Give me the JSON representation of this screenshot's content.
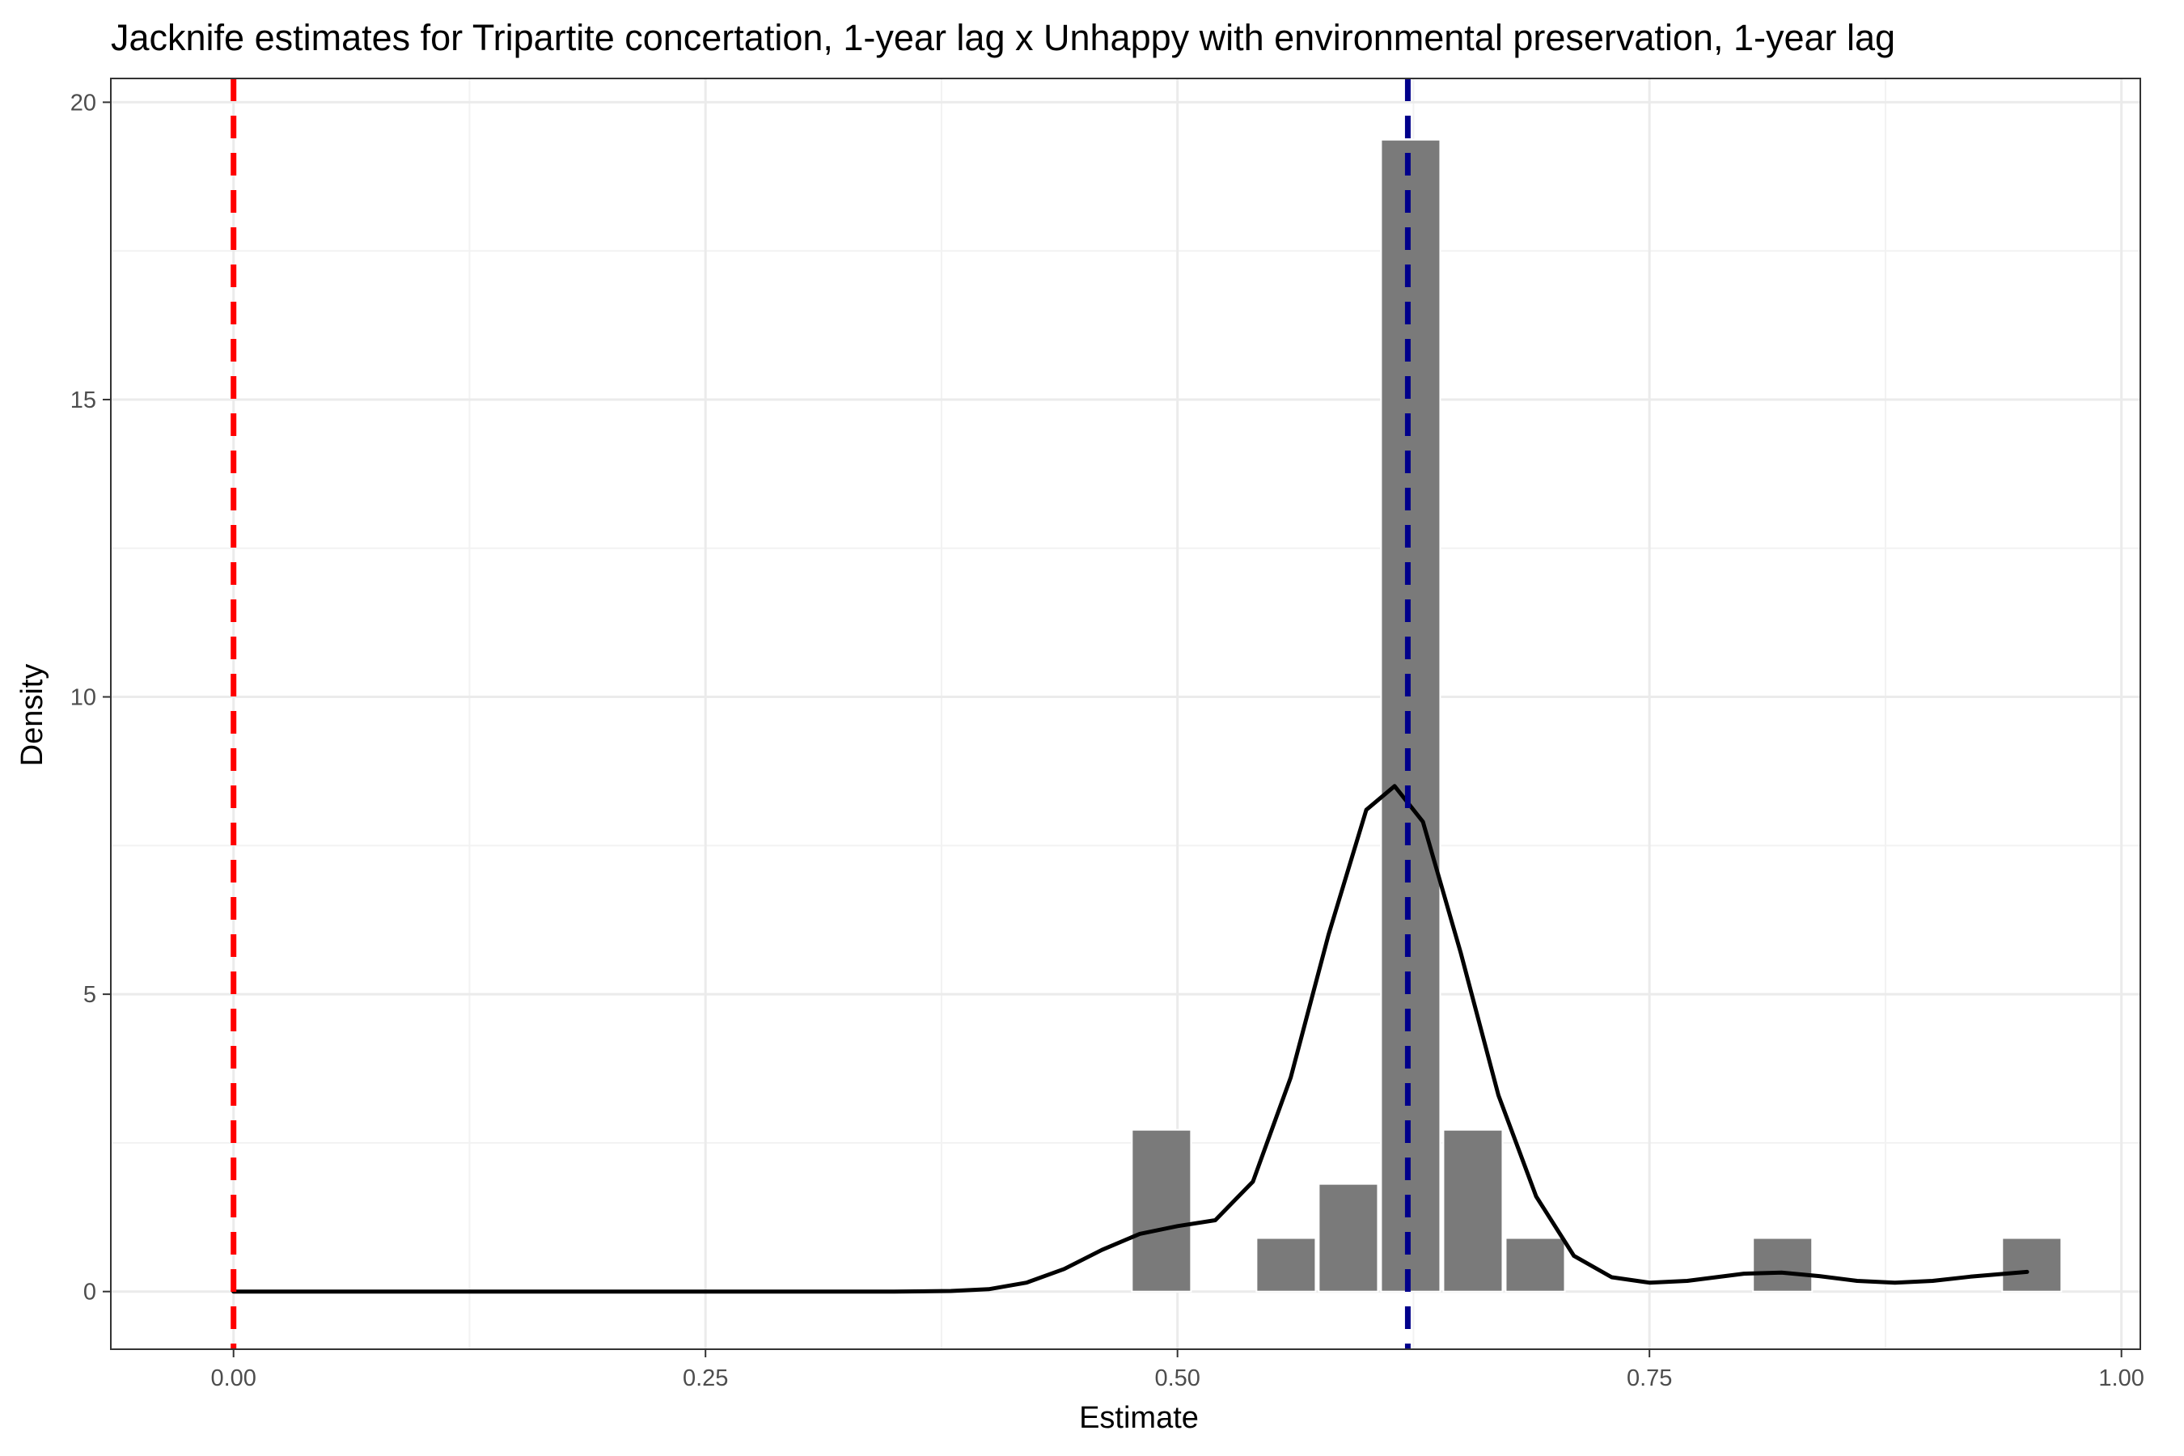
{
  "chart_data": {
    "type": "histogram",
    "title": "Jacknife estimates for Tripartite concertation, 1-year lag x Unhappy with environmental preservation, 1-year lag",
    "xlabel": "Estimate",
    "ylabel": "Density",
    "xlim": [
      -0.065,
      1.01
    ],
    "ylim": [
      -0.97,
      20.4
    ],
    "x_ticks": [
      {
        "value": 0.0,
        "label": "0.00"
      },
      {
        "value": 0.25,
        "label": "0.25"
      },
      {
        "value": 0.5,
        "label": "0.50"
      },
      {
        "value": 0.75,
        "label": "0.75"
      },
      {
        "value": 1.0,
        "label": "1.00"
      }
    ],
    "y_ticks": [
      {
        "value": 0,
        "label": "0"
      },
      {
        "value": 5,
        "label": "5"
      },
      {
        "value": 10,
        "label": "10"
      },
      {
        "value": 15,
        "label": "15"
      },
      {
        "value": 20,
        "label": "20"
      }
    ],
    "grid": true,
    "legend": "none",
    "bins": [
      {
        "x0": 0.475,
        "x1": 0.508,
        "density": 2.72
      },
      {
        "x0": 0.541,
        "x1": 0.574,
        "density": 0.9
      },
      {
        "x0": 0.574,
        "x1": 0.607,
        "density": 1.81
      },
      {
        "x0": 0.607,
        "x1": 0.64,
        "density": 19.37
      },
      {
        "x0": 0.64,
        "x1": 0.673,
        "density": 2.72
      },
      {
        "x0": 0.673,
        "x1": 0.706,
        "density": 0.9
      },
      {
        "x0": 0.804,
        "x1": 0.837,
        "density": 0.9
      },
      {
        "x0": 0.936,
        "x1": 0.969,
        "density": 0.9
      }
    ],
    "density_curve": {
      "x": [
        0.0,
        0.05,
        0.1,
        0.15,
        0.2,
        0.25,
        0.3,
        0.35,
        0.38,
        0.4,
        0.42,
        0.44,
        0.46,
        0.48,
        0.5,
        0.52,
        0.54,
        0.56,
        0.58,
        0.6,
        0.615,
        0.63,
        0.65,
        0.67,
        0.69,
        0.71,
        0.73,
        0.75,
        0.77,
        0.8,
        0.82,
        0.84,
        0.86,
        0.88,
        0.9,
        0.92,
        0.95
      ],
      "y": [
        0,
        0,
        0,
        0,
        0,
        0,
        0,
        0,
        0.01,
        0.04,
        0.15,
        0.38,
        0.7,
        0.97,
        1.1,
        1.2,
        1.85,
        3.6,
        6.0,
        8.1,
        8.5,
        7.9,
        5.7,
        3.3,
        1.6,
        0.6,
        0.24,
        0.15,
        0.18,
        0.3,
        0.32,
        0.26,
        0.18,
        0.15,
        0.18,
        0.25,
        0.33
      ]
    },
    "reference_lines": [
      {
        "value": 0.0,
        "color": "#ff0000",
        "style": "dashed"
      },
      {
        "value": 0.622,
        "color": "#00008b",
        "style": "dashed"
      }
    ],
    "colors": {
      "bar_fill": "#7a7a7a",
      "bar_stroke": "#ffffff",
      "curve": "#000000",
      "grid_major": "#ebebeb",
      "grid_minor": "#f2f2f2",
      "panel_border": "#333333"
    }
  }
}
